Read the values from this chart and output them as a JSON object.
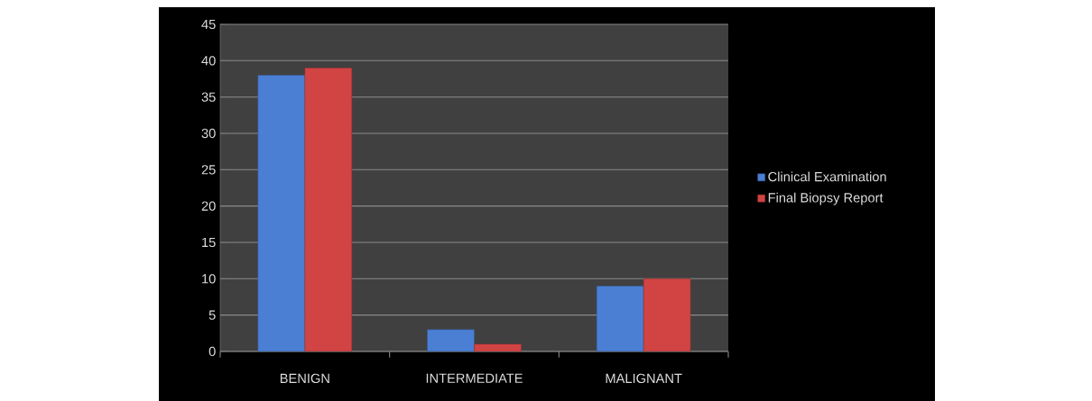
{
  "chart_data": {
    "type": "bar",
    "categories": [
      "BENIGN",
      "INTERMEDIATE",
      "MALIGNANT"
    ],
    "series": [
      {
        "name": "Clinical Examination",
        "color": "#4a7fd4",
        "values": [
          38,
          3,
          9
        ]
      },
      {
        "name": "Final Biopsy Report",
        "color": "#d24343",
        "values": [
          39,
          1,
          10
        ]
      }
    ],
    "ylim": [
      0,
      45
    ],
    "yticks": [
      0,
      5,
      10,
      15,
      20,
      25,
      30,
      35,
      40,
      45
    ],
    "grid": "y",
    "legend": "right"
  }
}
